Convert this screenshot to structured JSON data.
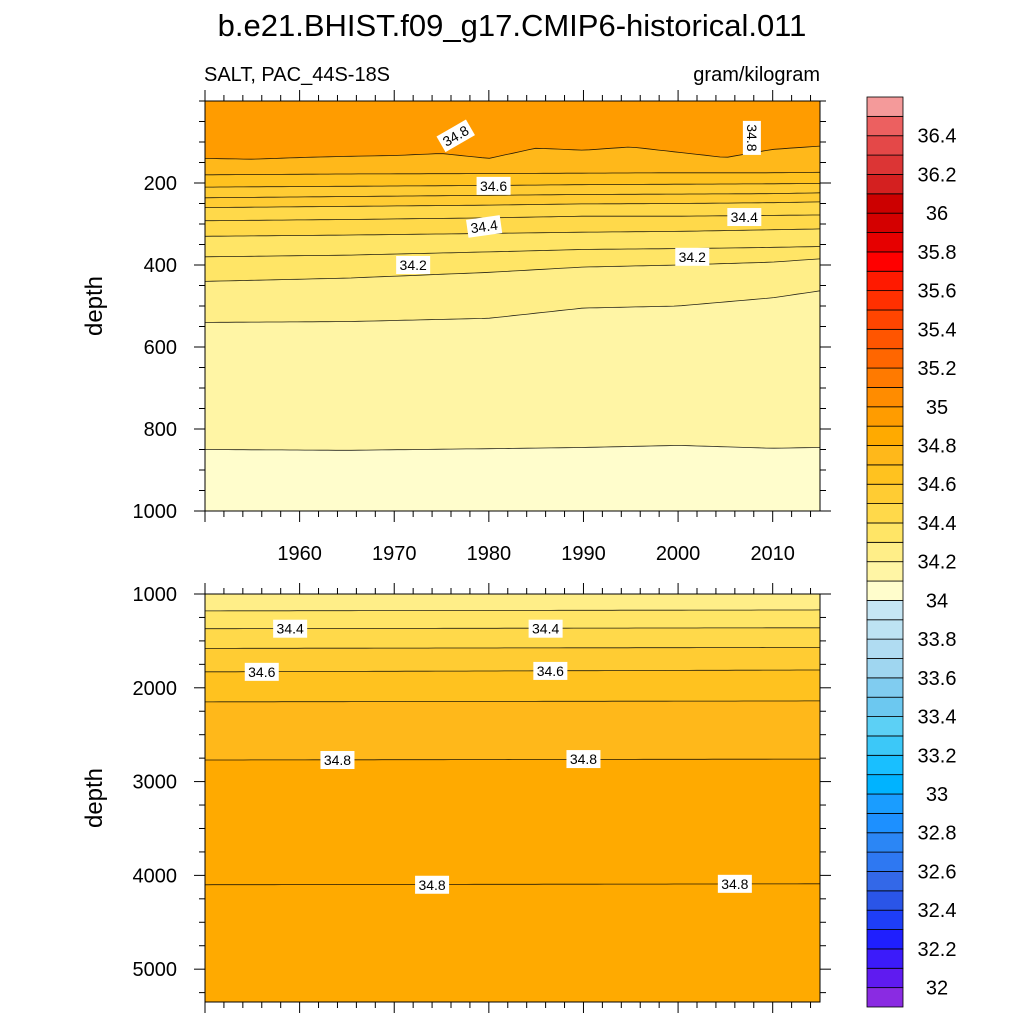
{
  "title": "b.e21.BHIST.f09_g17.CMIP6-historical.011",
  "subtitle_left": "SALT, PAC_44S-18S",
  "subtitle_right": "gram/kilogram",
  "chart_data": [
    {
      "type": "heatmap",
      "panel": "upper",
      "variable": "SALT",
      "region": "PAC_44S-18S",
      "units": "gram/kilogram",
      "xlabel": "",
      "ylabel": "depth",
      "xlim": [
        1950,
        2015
      ],
      "ylim": [
        1000,
        0
      ],
      "x_ticks": [
        1960,
        1970,
        1980,
        1990,
        2000,
        2010
      ],
      "y_ticks": [
        200,
        400,
        600,
        800,
        1000
      ],
      "contours": [
        {
          "level": 34.2,
          "x": [
            1950,
            1965,
            1980,
            1990,
            2000,
            2010,
            2015
          ],
          "depth": [
            540,
            538,
            530,
            505,
            500,
            480,
            463
          ]
        },
        {
          "level": 34.3,
          "x": [
            1950,
            1965,
            1980,
            1990,
            2000,
            2010,
            2015
          ],
          "depth": [
            440,
            432,
            418,
            405,
            400,
            393,
            385
          ]
        },
        {
          "level": 34.35,
          "x": [
            1950,
            1965,
            1980,
            1990,
            2000,
            2010,
            2015
          ],
          "depth": [
            380,
            376,
            368,
            362,
            360,
            357,
            355
          ]
        },
        {
          "level": 34.4,
          "x": [
            1950,
            1965,
            1980,
            1990,
            2000,
            2010,
            2015
          ],
          "depth": [
            330,
            327,
            323,
            320,
            318,
            314,
            312
          ]
        },
        {
          "level": 34.45,
          "x": [
            1950,
            1965,
            1980,
            1990,
            2000,
            2010,
            2015
          ],
          "depth": [
            292,
            289,
            285,
            281,
            281,
            279,
            278
          ]
        },
        {
          "level": 34.5,
          "x": [
            1950,
            1965,
            1980,
            1990,
            2000,
            2010,
            2015
          ],
          "depth": [
            260,
            257,
            254,
            251,
            250,
            248,
            246
          ]
        },
        {
          "level": 34.55,
          "x": [
            1950,
            1965,
            1980,
            1990,
            2000,
            2010,
            2015
          ],
          "depth": [
            236,
            233,
            230,
            228,
            227,
            226,
            224
          ]
        },
        {
          "level": 34.6,
          "x": [
            1950,
            1965,
            1980,
            1990,
            2000,
            2010,
            2015
          ],
          "depth": [
            210,
            208,
            206,
            204,
            203,
            202,
            201
          ]
        },
        {
          "level": 34.7,
          "x": [
            1950,
            1965,
            1980,
            1990,
            2000,
            2010,
            2015
          ],
          "depth": [
            180,
            178,
            177,
            176,
            175,
            175,
            174
          ]
        },
        {
          "level": 34.8,
          "x": [
            1950,
            1955,
            1960,
            1965,
            1970,
            1975,
            1980,
            1985,
            1990,
            1995,
            2000,
            2005,
            2010,
            2015
          ],
          "depth": [
            140,
            142,
            138,
            135,
            133,
            128,
            140,
            115,
            120,
            112,
            125,
            138,
            118,
            110
          ]
        },
        {
          "level": 34.1,
          "x": [
            1950,
            1965,
            1980,
            1990,
            2000,
            2010,
            2015
          ],
          "depth": [
            850,
            852,
            848,
            845,
            840,
            847,
            845
          ]
        }
      ],
      "contour_labels": [
        {
          "text": "34.8",
          "x": 1976.5,
          "depth": 85,
          "rotate": -30
        },
        {
          "text": "34.8",
          "x": 2007.8,
          "depth": 90,
          "rotate": 90
        },
        {
          "text": "34.6",
          "x": 1980.5,
          "depth": 207,
          "rotate": 0
        },
        {
          "text": "34.4",
          "x": 1979.5,
          "depth": 306,
          "rotate": -8
        },
        {
          "text": "34.4",
          "x": 2007.0,
          "depth": 283,
          "rotate": 0
        },
        {
          "text": "34.2",
          "x": 1972.0,
          "depth": 400,
          "rotate": 0
        },
        {
          "text": "34.2",
          "x": 2001.5,
          "depth": 380,
          "rotate": 0
        }
      ]
    },
    {
      "type": "heatmap",
      "panel": "lower",
      "variable": "SALT",
      "region": "PAC_44S-18S",
      "units": "gram/kilogram",
      "xlabel": "",
      "ylabel": "depth",
      "xlim": [
        1950,
        2015
      ],
      "ylim": [
        5350,
        1000
      ],
      "y_ticks": [
        1000,
        2000,
        3000,
        4000,
        5000
      ],
      "contours": [
        {
          "level": 34.3,
          "x": [
            1950,
            2015
          ],
          "depth": [
            1180,
            1170
          ]
        },
        {
          "level": 34.4,
          "x": [
            1950,
            2015
          ],
          "depth": [
            1370,
            1360
          ]
        },
        {
          "level": 34.5,
          "x": [
            1950,
            2015
          ],
          "depth": [
            1580,
            1570
          ]
        },
        {
          "level": 34.6,
          "x": [
            1950,
            2015
          ],
          "depth": [
            1830,
            1810
          ]
        },
        {
          "level": 34.7,
          "x": [
            1950,
            2015
          ],
          "depth": [
            2150,
            2140
          ]
        },
        {
          "level": 34.8,
          "x": [
            1950,
            2015
          ],
          "depth": [
            2770,
            2760
          ]
        },
        {
          "level": 34.8,
          "x": [
            1950,
            2015
          ],
          "depth": [
            4100,
            4090
          ]
        }
      ],
      "contour_labels": [
        {
          "text": "34.4",
          "x": 1959.0,
          "depth": 1370,
          "rotate": 0
        },
        {
          "text": "34.4",
          "x": 1986.0,
          "depth": 1370,
          "rotate": 0
        },
        {
          "text": "34.6",
          "x": 1956.0,
          "depth": 1830,
          "rotate": 0
        },
        {
          "text": "34.6",
          "x": 1986.5,
          "depth": 1820,
          "rotate": 0
        },
        {
          "text": "34.8",
          "x": 1964.0,
          "depth": 2770,
          "rotate": 0
        },
        {
          "text": "34.8",
          "x": 1990.0,
          "depth": 2760,
          "rotate": 0
        },
        {
          "text": "34.8",
          "x": 1974.0,
          "depth": 4100,
          "rotate": 0
        },
        {
          "text": "34.8",
          "x": 2006.0,
          "depth": 4090,
          "rotate": 0
        }
      ]
    }
  ],
  "colorbar": {
    "boundaries": [
      31.9,
      32.0,
      32.1,
      32.2,
      32.3,
      32.4,
      32.5,
      32.6,
      32.7,
      32.8,
      32.9,
      33.0,
      33.1,
      33.2,
      33.3,
      33.4,
      33.5,
      33.6,
      33.7,
      33.8,
      33.9,
      34.0,
      34.1,
      34.2,
      34.3,
      34.4,
      34.5,
      34.6,
      34.7,
      34.8,
      34.9,
      35.0,
      35.1,
      35.2,
      35.3,
      35.4,
      35.5,
      35.6,
      35.7,
      35.8,
      35.9,
      36.0,
      36.1,
      36.2,
      36.3,
      36.4,
      36.5,
      36.6
    ],
    "colors": [
      "#8a2be2",
      "#5f1bf0",
      "#3c1bfa",
      "#1f1ffe",
      "#1e3ef8",
      "#2a55e8",
      "#3368e8",
      "#2e78f2",
      "#2b86f5",
      "#1d90ff",
      "#1a9dff",
      "#00b3ff",
      "#19bfff",
      "#3cc8f8",
      "#5cd0f5",
      "#6cc8f0",
      "#80ccf0",
      "#9fd6f0",
      "#b0dcf2",
      "#bde3f3",
      "#c6e6f4",
      "#fffdcc",
      "#fff5a5",
      "#ffee88",
      "#ffe566",
      "#ffd94a",
      "#ffcc33",
      "#ffc21f",
      "#ffb81a",
      "#ffaa00",
      "#ff9c00",
      "#ff8c00",
      "#ff7a00",
      "#ff6600",
      "#ff5500",
      "#ff4500",
      "#ff3000",
      "#ff1a00",
      "#ff0000",
      "#e60000",
      "#d40000",
      "#cc0000",
      "#d42020",
      "#dc3535",
      "#e44848",
      "#ec6060",
      "#f49a9a"
    ],
    "labels": [
      "32",
      "32.2",
      "32.4",
      "32.6",
      "32.8",
      "33",
      "33.2",
      "33.4",
      "33.6",
      "33.8",
      "34",
      "34.2",
      "34.4",
      "34.6",
      "34.8",
      "35",
      "35.2",
      "35.4",
      "35.6",
      "35.8",
      "36",
      "36.2",
      "36.4"
    ],
    "label_values": [
      32.0,
      32.2,
      32.4,
      32.6,
      32.8,
      33.0,
      33.2,
      33.4,
      33.6,
      33.8,
      34.0,
      34.2,
      34.4,
      34.6,
      34.8,
      35.0,
      35.2,
      35.4,
      35.6,
      35.8,
      36.0,
      36.2,
      36.4
    ]
  }
}
